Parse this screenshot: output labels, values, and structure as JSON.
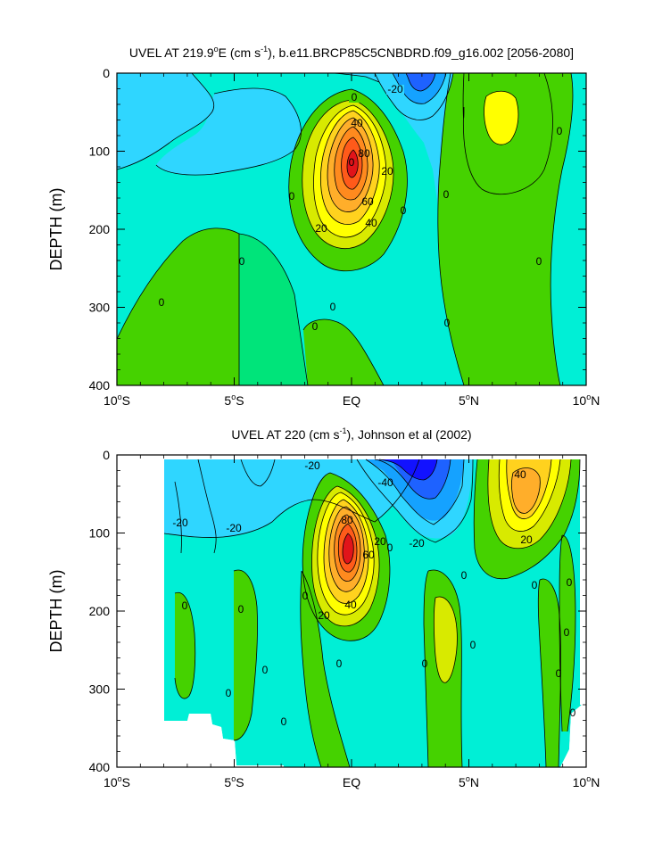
{
  "colors": {
    "lt60": "#1212ff",
    "m60": "#1e62ff",
    "m40": "#15a2ff",
    "m20": "#2fd6ff",
    "m5": "#00efd6",
    "z": "#00e47a",
    "p5": "#45d200",
    "p20": "#d8ea00",
    "p30": "#ffff00",
    "p40": "#ffd21e",
    "p50": "#ffae2a",
    "p60": "#ff8a1e",
    "p80": "#ff5a1a",
    "p100": "#e1141a"
  },
  "chart_data": [
    {
      "type": "contour",
      "title": "UVEL AT 219.9°E (cm s⁻¹), b.e11.BRCP85C5CNBDRD.f09_g16.002 [2056-2080]",
      "title_main": "UVEL AT 219.9",
      "title_sup": "o",
      "title_mid": "E (cm s",
      "title_sup2": "-1",
      "title_end": "), b.e11.BRCP85C5CNBDRD.f09_g16.002 [2056-2080]",
      "xlabel": "",
      "ylabel": "DEPTH (m)",
      "xlim": [
        -10,
        10
      ],
      "ylim": [
        0,
        400
      ],
      "y_inverted": true,
      "x_ticks": [
        {
          "value": -10,
          "label": "10",
          "deg": "o",
          "hemi": "S"
        },
        {
          "value": -5,
          "label": "5",
          "deg": "o",
          "hemi": "S"
        },
        {
          "value": 0,
          "label": "EQ",
          "deg": "",
          "hemi": ""
        },
        {
          "value": 5,
          "label": "5",
          "deg": "o",
          "hemi": "N"
        },
        {
          "value": 10,
          "label": "10",
          "deg": "o",
          "hemi": "N"
        }
      ],
      "y_ticks": [
        {
          "value": 0,
          "label": "0"
        },
        {
          "value": 100,
          "label": "100"
        },
        {
          "value": 200,
          "label": "200"
        },
        {
          "value": 300,
          "label": "300"
        },
        {
          "value": 400,
          "label": "400"
        }
      ],
      "features": [
        {
          "name": "undercurrent-core",
          "lat": -0.1,
          "depth": 120,
          "value": 100
        },
        {
          "name": "surface-westward-flow",
          "lat": 2.3,
          "depth": 10,
          "value": -40
        },
        {
          "name": "countercurrent-core",
          "lat": 6.3,
          "depth": 60,
          "value": 20
        }
      ],
      "contour_labels": [
        {
          "text": "0",
          "lat": 0.1,
          "depth": 30
        },
        {
          "text": "-20",
          "lat": 1.8,
          "depth": 22
        },
        {
          "text": "40",
          "lat": 0.2,
          "depth": 62
        },
        {
          "text": "80",
          "lat": 0.5,
          "depth": 100
        },
        {
          "text": "0",
          "lat": -0.1,
          "depth": 112
        },
        {
          "text": "20",
          "lat": 1.4,
          "depth": 128
        },
        {
          "text": "60",
          "lat": 0.6,
          "depth": 162
        },
        {
          "text": "40",
          "lat": 0.8,
          "depth": 196
        },
        {
          "text": "20",
          "lat": -1.3,
          "depth": 196
        },
        {
          "text": "0",
          "lat": 2.1,
          "depth": 175
        },
        {
          "text": "0",
          "lat": -2.6,
          "depth": 158
        },
        {
          "text": "0",
          "lat": 3.9,
          "depth": 157
        },
        {
          "text": "0",
          "lat": 8.9,
          "depth": 74
        },
        {
          "text": "0",
          "lat": -4.7,
          "depth": 242
        },
        {
          "text": "0",
          "lat": 7.8,
          "depth": 242
        },
        {
          "text": "0",
          "lat": -8.1,
          "depth": 294
        },
        {
          "text": "0",
          "lat": -1.9,
          "depth": 300
        },
        {
          "text": "0",
          "lat": -1.7,
          "depth": 322
        },
        {
          "text": "0",
          "lat": 4.1,
          "depth": 320
        }
      ]
    },
    {
      "type": "contour",
      "title": "UVEL AT 220 (cm s⁻¹), Johnson et al (2002)",
      "title_main": "UVEL AT 220 (cm s",
      "title_sup": "-1",
      "title_end": "), Johnson et al (2002)",
      "xlabel": "",
      "ylabel": "DEPTH (m)",
      "xlim": [
        -10,
        10
      ],
      "ylim": [
        0,
        400
      ],
      "y_inverted": true,
      "x_ticks": [
        {
          "value": -10,
          "label": "10",
          "deg": "o",
          "hemi": "S"
        },
        {
          "value": -5,
          "label": "5",
          "deg": "o",
          "hemi": "S"
        },
        {
          "value": 0,
          "label": "EQ",
          "deg": "",
          "hemi": ""
        },
        {
          "value": 5,
          "label": "5",
          "deg": "o",
          "hemi": "N"
        },
        {
          "value": 10,
          "label": "10",
          "deg": "o",
          "hemi": "N"
        }
      ],
      "y_ticks": [
        {
          "value": 0,
          "label": "0"
        },
        {
          "value": 100,
          "label": "100"
        },
        {
          "value": 200,
          "label": "200"
        },
        {
          "value": 300,
          "label": "300"
        },
        {
          "value": 400,
          "label": "400"
        }
      ],
      "features": [
        {
          "name": "undercurrent-core",
          "lat": -0.1,
          "depth": 115,
          "value": 100
        },
        {
          "name": "surface-westward-flow",
          "lat": 2.0,
          "depth": 20,
          "value": -60
        },
        {
          "name": "countercurrent-core",
          "lat": 6.9,
          "depth": 60,
          "value": 40
        },
        {
          "name": "data-gap",
          "description": "no data",
          "lat": -8.0,
          "depth": 340
        }
      ],
      "contour_labels": [
        {
          "text": "-20",
          "lat": -1.7,
          "depth": 14
        },
        {
          "text": "-40",
          "lat": 1.4,
          "depth": 35
        },
        {
          "text": "40",
          "lat": 7.0,
          "depth": 24
        },
        {
          "text": "80",
          "lat": -0.2,
          "depth": 82
        },
        {
          "text": "-20",
          "lat": -8.7,
          "depth": 86
        },
        {
          "text": "-20",
          "lat": -5.1,
          "depth": 92
        },
        {
          "text": "20",
          "lat": 7.3,
          "depth": 110
        },
        {
          "text": "20",
          "lat": 1.2,
          "depth": 112
        },
        {
          "text": "-20",
          "lat": 2.8,
          "depth": 112
        },
        {
          "text": "60",
          "lat": 0.8,
          "depth": 128
        },
        {
          "text": "0",
          "lat": 1.7,
          "depth": 120
        },
        {
          "text": "0",
          "lat": 4.9,
          "depth": 155
        },
        {
          "text": "0",
          "lat": 7.8,
          "depth": 168
        },
        {
          "text": "0",
          "lat": 9.6,
          "depth": 165
        },
        {
          "text": "0",
          "lat": -2.0,
          "depth": 182
        },
        {
          "text": "0",
          "lat": -7.0,
          "depth": 196
        },
        {
          "text": "0",
          "lat": -5.0,
          "depth": 200
        },
        {
          "text": "20",
          "lat": -1.3,
          "depth": 205
        },
        {
          "text": "40",
          "lat": 0.0,
          "depth": 193
        },
        {
          "text": "0",
          "lat": 9.3,
          "depth": 228
        },
        {
          "text": "0",
          "lat": 5.2,
          "depth": 245
        },
        {
          "text": "0",
          "lat": 3.1,
          "depth": 270
        },
        {
          "text": "0",
          "lat": -0.6,
          "depth": 270
        },
        {
          "text": "0",
          "lat": -4.6,
          "depth": 276
        },
        {
          "text": "0",
          "lat": 8.9,
          "depth": 280
        },
        {
          "text": "0",
          "lat": -5.4,
          "depth": 310
        },
        {
          "text": "0",
          "lat": -2.9,
          "depth": 342
        },
        {
          "text": "0",
          "lat": 9.5,
          "depth": 330
        }
      ]
    }
  ]
}
